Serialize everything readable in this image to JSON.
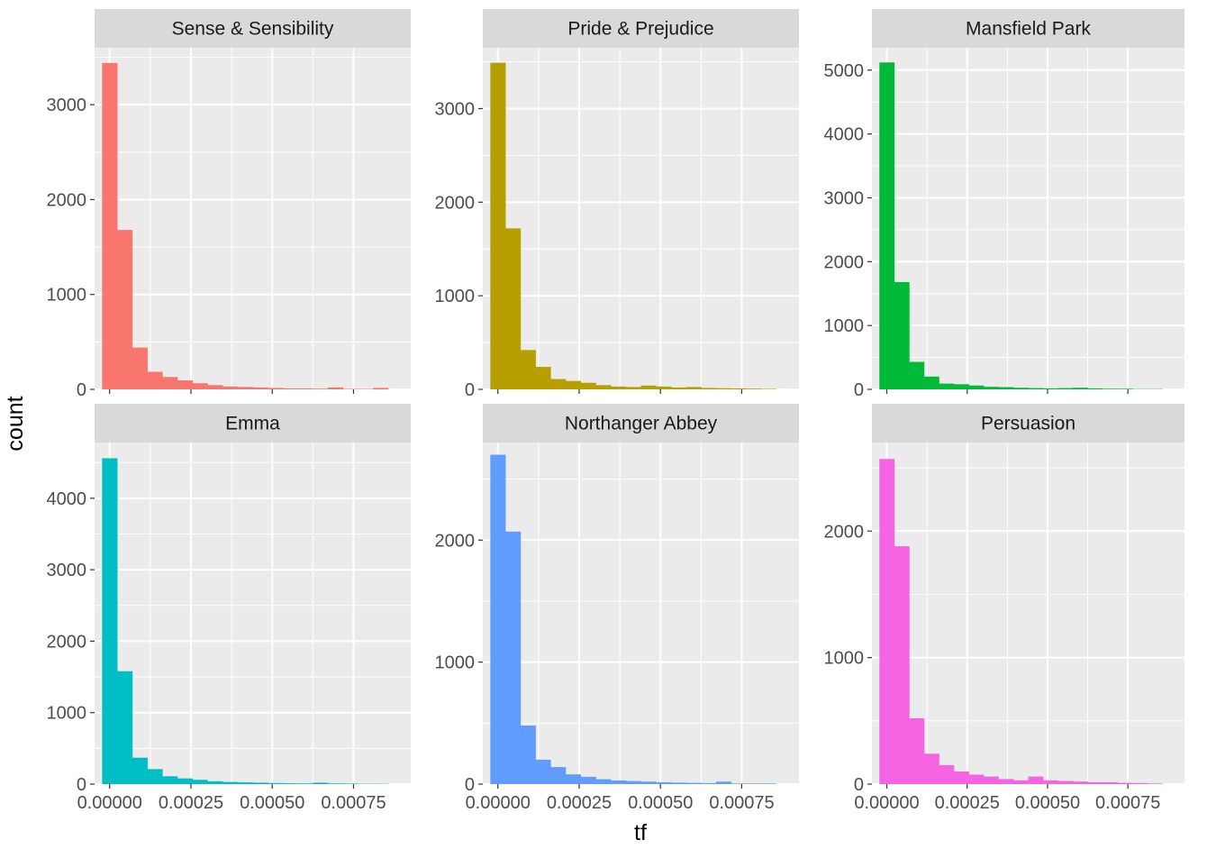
{
  "chart_data": {
    "type": "bar",
    "subtype": "faceted-histogram",
    "xlabel": "tf",
    "ylabel": "count",
    "grid": true,
    "legend": "none",
    "bin_width": 4.63e-05,
    "bin_start": 0.0,
    "x_breaks": [
      0.0,
      0.00025,
      0.0005,
      0.00075
    ],
    "x_tick_labels": [
      "0.00000",
      "0.00025",
      "0.00050",
      "0.00075"
    ],
    "xlim": [
      -4.63e-05,
      0.000926
    ],
    "facets": [
      {
        "name": "Sense & Sensibility",
        "color": "#F8766D",
        "y_breaks": [
          0,
          1000,
          2000,
          3000
        ],
        "ylim": [
          0,
          3600
        ],
        "values": [
          3440,
          1680,
          440,
          185,
          130,
          95,
          65,
          45,
          30,
          25,
          20,
          15,
          10,
          10,
          8,
          20,
          5,
          5,
          15
        ]
      },
      {
        "name": "Pride & Prejudice",
        "color": "#B79F00",
        "y_breaks": [
          0,
          1000,
          2000,
          3000
        ],
        "ylim": [
          0,
          3650
        ],
        "values": [
          3490,
          1720,
          420,
          240,
          110,
          90,
          70,
          45,
          30,
          25,
          40,
          30,
          20,
          25,
          15,
          12,
          10,
          8,
          5
        ]
      },
      {
        "name": "Mansfield Park",
        "color": "#00BA38",
        "y_breaks": [
          0,
          1000,
          2000,
          3000,
          4000,
          5000
        ],
        "ylim": [
          0,
          5350
        ],
        "values": [
          5120,
          1680,
          430,
          200,
          90,
          80,
          60,
          40,
          35,
          25,
          20,
          15,
          20,
          25,
          15,
          10,
          10,
          5,
          5
        ]
      },
      {
        "name": "Emma",
        "color": "#00BFC4",
        "y_breaks": [
          0,
          1000,
          2000,
          3000,
          4000
        ],
        "ylim": [
          0,
          4780
        ],
        "values": [
          4560,
          1580,
          370,
          210,
          110,
          80,
          60,
          40,
          30,
          25,
          20,
          15,
          12,
          10,
          20,
          10,
          8,
          5,
          5
        ]
      },
      {
        "name": "Northanger Abbey",
        "color": "#619CFF",
        "y_breaks": [
          0,
          1000,
          2000
        ],
        "ylim": [
          0,
          2800
        ],
        "values": [
          2700,
          2070,
          480,
          200,
          140,
          80,
          60,
          40,
          30,
          25,
          20,
          15,
          12,
          10,
          8,
          20,
          5,
          5,
          5
        ]
      },
      {
        "name": "Persuasion",
        "color": "#F564E3",
        "y_breaks": [
          0,
          1000,
          2000
        ],
        "ylim": [
          0,
          2700
        ],
        "values": [
          2570,
          1880,
          520,
          240,
          150,
          100,
          75,
          60,
          40,
          30,
          60,
          30,
          25,
          20,
          15,
          15,
          10,
          8,
          5
        ]
      }
    ]
  }
}
